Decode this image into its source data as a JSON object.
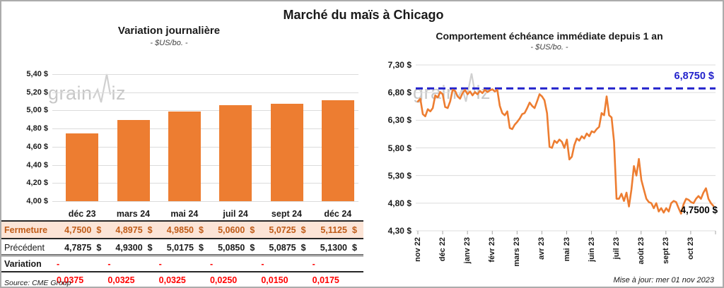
{
  "page": {
    "title": "Marché du maïs à Chicago"
  },
  "watermark": {
    "pre": "grain",
    "post": "iz"
  },
  "chart_data": [
    {
      "type": "bar",
      "title": "Variation journalière",
      "subtitle": "- $US/bo. -",
      "categories": [
        "déc 23",
        "mars 24",
        "mai 24",
        "juil 24",
        "sept 24",
        "déc 24"
      ],
      "values": [
        4.75,
        4.8975,
        4.985,
        5.06,
        5.0725,
        5.1125
      ],
      "ylim": [
        4.0,
        5.4
      ],
      "y_tick_labels": [
        "5,40 $",
        "5,20 $",
        "5,00 $",
        "4,80 $",
        "4,60 $",
        "4,40 $",
        "4,20 $",
        "4,00 $"
      ],
      "bar_color": "#ED7D31",
      "grid": true
    },
    {
      "type": "line",
      "title": "Comportement échéance immédiate depuis 1 an",
      "subtitle": "- $US/bo. -",
      "x_labels": [
        "nov 22",
        "déc 22",
        "janv 23",
        "févr 23",
        "mars 23",
        "avr 23",
        "mai 23",
        "juin 23",
        "juil 23",
        "août 23",
        "sept 23",
        "oct 23"
      ],
      "values": [
        6.64,
        6.69,
        6.41,
        6.37,
        6.5,
        6.46,
        6.52,
        6.75,
        6.71,
        6.81,
        6.77,
        6.54,
        6.52,
        6.64,
        6.85,
        6.83,
        6.73,
        6.69,
        6.79,
        6.85,
        6.77,
        6.82,
        6.75,
        6.81,
        6.77,
        6.83,
        6.79,
        6.85,
        6.81,
        6.84,
        6.86,
        6.82,
        6.85,
        6.56,
        6.43,
        6.39,
        6.46,
        6.16,
        6.14,
        6.22,
        6.27,
        6.33,
        6.41,
        6.43,
        6.52,
        6.62,
        6.56,
        6.52,
        6.64,
        6.77,
        6.73,
        6.66,
        6.43,
        5.82,
        5.8,
        5.93,
        5.89,
        5.95,
        5.91,
        5.8,
        5.95,
        5.59,
        5.64,
        5.85,
        5.97,
        5.93,
        6.01,
        5.97,
        6.06,
        6.01,
        6.1,
        6.08,
        6.14,
        6.18,
        6.43,
        6.39,
        6.73,
        6.39,
        6.35,
        5.91,
        4.88,
        4.88,
        4.97,
        4.84,
        4.99,
        4.74,
        5.05,
        5.47,
        5.3,
        5.6,
        5.22,
        5.05,
        4.88,
        4.82,
        4.8,
        4.71,
        4.8,
        4.65,
        4.71,
        4.63,
        4.71,
        4.65,
        4.8,
        4.84,
        4.82,
        4.71,
        4.61,
        4.78,
        4.88,
        4.86,
        4.82,
        4.8,
        4.88,
        4.93,
        4.88,
        4.99,
        5.07,
        4.88,
        4.8,
        4.75
      ],
      "ylim": [
        4.3,
        7.3
      ],
      "y_tick_labels": [
        "7,30 $",
        "6,80 $",
        "6,30 $",
        "5,80 $",
        "5,30 $",
        "4,80 $",
        "4,30 $"
      ],
      "line_color": "#ED7D31",
      "reference_line": {
        "value": 6.875,
        "label": "6,8750 $",
        "color": "#2222CC"
      },
      "last_value_label": "4,7500 $",
      "grid": true
    }
  ],
  "table": {
    "col_headers": [
      "déc 23",
      "mars 24",
      "mai 24",
      "juil 24",
      "sept 24",
      "déc 24"
    ],
    "rows": {
      "fermeture": {
        "label": "Fermeture",
        "unit": "$",
        "values": [
          "4,7500",
          "4,8975",
          "4,9850",
          "5,0600",
          "5,0725",
          "5,1125"
        ]
      },
      "precedent": {
        "label": "Précédent",
        "unit": "$",
        "values": [
          "4,7875",
          "4,9300",
          "5,0175",
          "5,0850",
          "5,0875",
          "5,1300"
        ]
      },
      "variation": {
        "label": "Variation",
        "values": [
          "- 0,0375",
          "- 0,0325",
          "- 0,0325",
          "- 0,0250",
          "- 0,0150",
          "- 0,0175"
        ]
      }
    },
    "source": "Source: CME Group"
  },
  "footer": {
    "updated": "Mise à jour: mer 01 nov 2023"
  },
  "colors": {
    "accent_orange": "#ED7D31",
    "close_row_bg": "#FCE4D6",
    "close_text": "#BF5B17",
    "negative_red": "#FF0000",
    "reference_blue": "#2222CC",
    "gridline": "#DCDCDC"
  }
}
